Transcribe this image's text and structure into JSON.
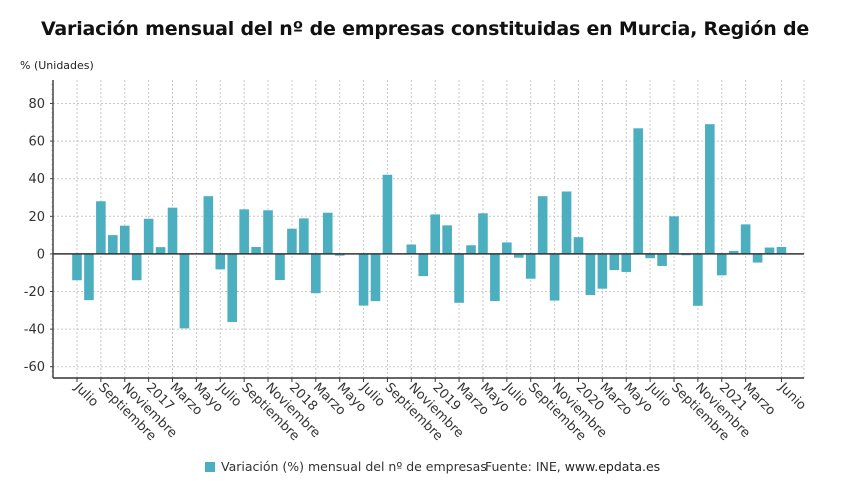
{
  "chart_data": {
    "type": "bar",
    "title": "Variación mensual del nº de empresas constituidas en Murcia, Región de",
    "ylabel": "% (Unidades)",
    "xlabel": "",
    "ylim": [
      -66,
      92.5
    ],
    "yticks": [
      80,
      60,
      40,
      20,
      0,
      -20,
      -40,
      -60
    ],
    "grid": true,
    "legend_position": "bottom",
    "bar_color": "#4bafbf",
    "categories": [
      "Jul 2016",
      "Ago 2016",
      "Sep 2016",
      "Oct 2016",
      "Nov 2016",
      "Dic 2016",
      "Ene 2017",
      "Feb 2017",
      "Mar 2017",
      "Abr 2017",
      "May 2017",
      "Jun 2017",
      "Jul 2017",
      "Ago 2017",
      "Sep 2017",
      "Oct 2017",
      "Nov 2017",
      "Dic 2017",
      "Ene 2018",
      "Feb 2018",
      "Mar 2018",
      "Abr 2018",
      "May 2018",
      "Jun 2018",
      "Jul 2018",
      "Ago 2018",
      "Sep 2018",
      "Oct 2018",
      "Nov 2018",
      "Dic 2018",
      "Ene 2019",
      "Feb 2019",
      "Mar 2019",
      "Abr 2019",
      "May 2019",
      "Jun 2019",
      "Jul 2019",
      "Ago 2019",
      "Sep 2019",
      "Oct 2019",
      "Nov 2019",
      "Dic 2019",
      "Ene 2020",
      "Feb 2020",
      "Mar 2020",
      "Abr 2020",
      "May 2020",
      "Jun 2020",
      "Jul 2020",
      "Ago 2020",
      "Sep 2020",
      "Oct 2020",
      "Nov 2020",
      "Dic 2020",
      "Ene 2021",
      "Feb 2021",
      "Mar 2021",
      "Abr 2021",
      "May 2021",
      "Jun 2021"
    ],
    "series": [
      {
        "name": "Variación (%) mensual del nº de empresas",
        "values": [
          -14,
          -24.6,
          28,
          10,
          15,
          -14,
          18.7,
          3.6,
          24.6,
          -39.6,
          0,
          30.7,
          -8.2,
          -36.2,
          23.7,
          3.7,
          23.2,
          -13.9,
          13.4,
          18.9,
          -20.9,
          21.9,
          -0.9,
          0,
          -27.5,
          -25.1,
          42.1,
          0,
          5,
          -11.8,
          21,
          15.2,
          -26,
          4.6,
          21.6,
          -25.1,
          6.1,
          -2,
          -13.2,
          30.7,
          -24.8,
          33.2,
          8.9,
          -21.9,
          -18.5,
          -8.6,
          -9.6,
          66.8,
          -2.3,
          -6.4,
          20,
          -0.7,
          -27.6,
          69,
          -11.4,
          1.6,
          15.7,
          -4.6,
          3.4,
          3.7
        ]
      }
    ],
    "xticks": [
      {
        "index": 0,
        "label": "Julio"
      },
      {
        "index": 2,
        "label": "Septiembre"
      },
      {
        "index": 4,
        "label": "Noviembre"
      },
      {
        "index": 6,
        "label": "2017"
      },
      {
        "index": 8,
        "label": "Marzo"
      },
      {
        "index": 10,
        "label": "Mayo"
      },
      {
        "index": 12,
        "label": "Julio"
      },
      {
        "index": 14,
        "label": "Septiembre"
      },
      {
        "index": 16,
        "label": "Noviembre"
      },
      {
        "index": 18,
        "label": "2018"
      },
      {
        "index": 20,
        "label": "Marzo"
      },
      {
        "index": 22,
        "label": "Mayo"
      },
      {
        "index": 24,
        "label": "Julio"
      },
      {
        "index": 26,
        "label": "Septiembre"
      },
      {
        "index": 28,
        "label": "Noviembre"
      },
      {
        "index": 30,
        "label": "2019"
      },
      {
        "index": 32,
        "label": "Marzo"
      },
      {
        "index": 34,
        "label": "Mayo"
      },
      {
        "index": 36,
        "label": "Julio"
      },
      {
        "index": 38,
        "label": "Septiembre"
      },
      {
        "index": 40,
        "label": "Noviembre"
      },
      {
        "index": 42,
        "label": "2020"
      },
      {
        "index": 44,
        "label": "Marzo"
      },
      {
        "index": 46,
        "label": "Mayo"
      },
      {
        "index": 48,
        "label": "Julio"
      },
      {
        "index": 50,
        "label": "Septiembre"
      },
      {
        "index": 52,
        "label": "Noviembre"
      },
      {
        "index": 54,
        "label": "2021"
      },
      {
        "index": 56,
        "label": "Marzo"
      },
      {
        "index": 59,
        "label": "Junio"
      }
    ]
  },
  "legend": {
    "label": "Variación (%) mensual del nº de empresas"
  },
  "source": {
    "prefix": "Fuente: INE, ",
    "site": "www.epdata.es"
  }
}
